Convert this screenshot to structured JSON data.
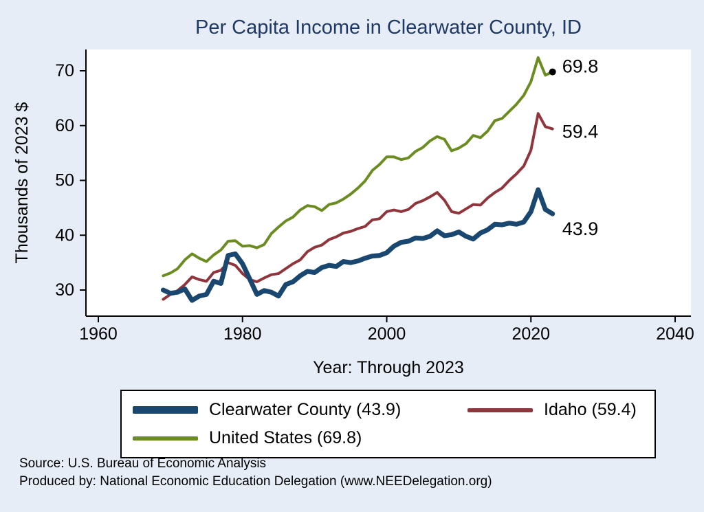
{
  "title": "Per Capita Income in Clearwater County, ID",
  "ylabel": "Thousands of 2023 $",
  "xlabel": "Year: Through 2023",
  "footer": {
    "source": "Source: U.S. Bureau of Economic Analysis",
    "produced_by": "Produced by: National Economic Education Delegation (www.NEEDelegation.org)"
  },
  "legend": {
    "items": [
      {
        "label": "Clearwater County (43.9)"
      },
      {
        "label": "Idaho (59.4)"
      },
      {
        "label": "United States (69.8)"
      }
    ]
  },
  "colors": {
    "background": "#e6edf7",
    "title": "#1f3864",
    "axis": "#000000"
  },
  "chart_data": {
    "type": "line",
    "title": "Per Capita Income in Clearwater County, ID",
    "xlabel": "Year: Through 2023",
    "ylabel": "Thousands of 2023 $",
    "xlim": [
      1960,
      2040
    ],
    "ylim": [
      30,
      70
    ],
    "xticks": [
      1960,
      1980,
      2000,
      2020,
      2040
    ],
    "yticks": [
      30,
      40,
      50,
      60,
      70
    ],
    "grid": false,
    "legend_position": "bottom",
    "x": [
      1969,
      1970,
      1971,
      1972,
      1973,
      1974,
      1975,
      1976,
      1977,
      1978,
      1979,
      1980,
      1981,
      1982,
      1983,
      1984,
      1985,
      1986,
      1987,
      1988,
      1989,
      1990,
      1991,
      1992,
      1993,
      1994,
      1995,
      1996,
      1997,
      1998,
      1999,
      2000,
      2001,
      2002,
      2003,
      2004,
      2005,
      2006,
      2007,
      2008,
      2009,
      2010,
      2011,
      2012,
      2013,
      2014,
      2015,
      2016,
      2017,
      2018,
      2019,
      2020,
      2021,
      2022,
      2023
    ],
    "series": [
      {
        "name": "Clearwater County",
        "color": "#1a476f",
        "width": 7,
        "end_label": "43.9",
        "label_dy": 22,
        "end_dot": false,
        "values": [
          30.0,
          29.4,
          29.6,
          30.2,
          28.1,
          28.9,
          29.2,
          31.6,
          31.2,
          36.3,
          36.6,
          34.8,
          32.0,
          29.2,
          29.9,
          29.6,
          28.9,
          31.0,
          31.5,
          32.6,
          33.4,
          33.2,
          34.1,
          34.5,
          34.3,
          35.2,
          35.0,
          35.3,
          35.8,
          36.2,
          36.3,
          36.8,
          38.0,
          38.7,
          38.9,
          39.5,
          39.4,
          39.8,
          40.8,
          39.9,
          40.1,
          40.6,
          39.8,
          39.3,
          40.4,
          41.0,
          42.0,
          41.9,
          42.2,
          42.0,
          42.4,
          44.3,
          48.3,
          44.7,
          43.9
        ]
      },
      {
        "name": "Idaho",
        "color": "#90353b",
        "width": 4,
        "end_label": "59.4",
        "label_dy": 4,
        "end_dot": false,
        "values": [
          28.3,
          29.2,
          29.9,
          31.0,
          32.4,
          31.9,
          31.6,
          33.2,
          33.6,
          35.0,
          34.5,
          33.0,
          31.9,
          31.5,
          32.2,
          32.8,
          33.0,
          33.9,
          34.8,
          35.5,
          37.0,
          37.8,
          38.2,
          39.2,
          39.7,
          40.4,
          40.7,
          41.2,
          41.6,
          42.8,
          43.0,
          44.3,
          44.6,
          44.3,
          44.7,
          45.8,
          46.3,
          47.0,
          47.8,
          46.4,
          44.3,
          44.0,
          44.8,
          45.6,
          45.5,
          46.8,
          47.8,
          48.6,
          50.0,
          51.2,
          52.6,
          55.5,
          62.2,
          59.8,
          59.4
        ]
      },
      {
        "name": "United States",
        "color": "#6b8c21",
        "width": 4,
        "end_label": "69.8",
        "label_dy": -8,
        "end_dot": true,
        "values": [
          32.6,
          33.1,
          33.9,
          35.5,
          36.6,
          35.8,
          35.2,
          36.4,
          37.3,
          38.9,
          39.0,
          38.0,
          38.1,
          37.7,
          38.3,
          40.3,
          41.5,
          42.6,
          43.3,
          44.6,
          45.4,
          45.2,
          44.5,
          45.6,
          45.9,
          46.6,
          47.5,
          48.6,
          49.9,
          51.8,
          52.9,
          54.3,
          54.3,
          53.8,
          54.1,
          55.3,
          56.0,
          57.2,
          58.0,
          57.5,
          55.4,
          55.9,
          56.7,
          58.2,
          57.8,
          59.0,
          60.9,
          61.3,
          62.6,
          63.9,
          65.5,
          68.0,
          72.4,
          69.2,
          69.8
        ]
      }
    ]
  }
}
